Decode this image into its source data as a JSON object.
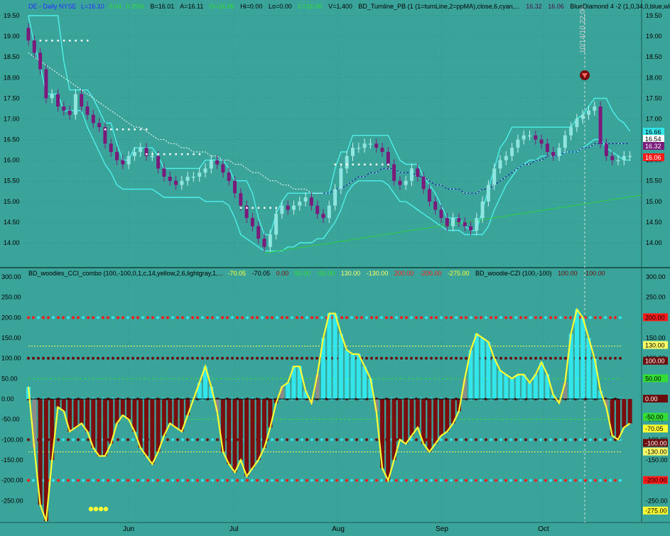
{
  "colors": {
    "background": "#3aa49a",
    "axis_text": "#000000",
    "candle_up": "#8fe6e0",
    "candle_down": "#7a1a7a",
    "envelope": "#4ff0ec",
    "ma_dashed": "#ffffff",
    "ma_blue": "#0d2fa0",
    "trend_line": "#2ecc40",
    "cci_line": "#ffff33",
    "cci_pos": "#33e6ec",
    "cci_neg": "#7a0d0d",
    "cci_neutral": "#8c8c8c",
    "dot_red": "#ff1a1a",
    "dot_cyan": "#33e6ec",
    "dot_dark": "#6b0d0d"
  },
  "price_header": {
    "symbol": "DE - Daily NYSE",
    "last": "L=16.10",
    "change": "0.04",
    "change_pct": "0.25%",
    "bid": "B=16.01",
    "ask": "A=16.11",
    "open": "O=16.06",
    "high": "Hi=0.00",
    "low": "Lo=0.00",
    "close": "C=16.06",
    "volume": "V=1,400",
    "study1": "BD_Turnline_PB (1 (1=turnLine,2=ppMA),close,6,cyan,...",
    "study1_v1": "16.32",
    "study1_v2": "16.06",
    "study2": "BlueDiamond 4 -2 (1,0,34,0,blue,wl..."
  },
  "cci_header": {
    "study": "BD_woodies_CCI_combo (100,-100,0,1,c,14,yellow,2,6,lightgray,1,...",
    "v1": "-70.05",
    "v2": "-70.05",
    "v3": "0.00",
    "v4": "50.00",
    "v5": "-50.00",
    "v6": "130.00",
    "v7": "-130.00",
    "v8": "200.00",
    "v9": "-200.00",
    "v10": "-275.00",
    "study2": "BD_woodie-CZI (100,-100)",
    "v11": "100.00",
    "v12": "-100.00"
  },
  "cursor_label": "10/14/10 22:00",
  "x_axis": {
    "labels": [
      "Jun",
      "Jul",
      "Aug",
      "Sep",
      "Oct"
    ]
  },
  "price_badges": [
    {
      "text": "16.66",
      "fg": "#000000",
      "bg": "#33e6ec"
    },
    {
      "text": "16.54",
      "fg": "#000000",
      "bg": "#ffffff"
    },
    {
      "text": "16.32",
      "fg": "#ffffff",
      "bg": "#7a1a7a"
    },
    {
      "text": "16.06",
      "fg": "#ffffff",
      "bg": "#ff1a1a"
    }
  ],
  "cci_badges": [
    {
      "text": "200.00",
      "fg": "#000000",
      "bg": "#ff1a1a"
    },
    {
      "text": "130.00",
      "fg": "#000000",
      "bg": "#ffff66"
    },
    {
      "text": "100.00",
      "fg": "#ffffff",
      "bg": "#6b0d0d"
    },
    {
      "text": "50.00",
      "fg": "#000000",
      "bg": "#33dd33"
    },
    {
      "text": "0.00",
      "fg": "#ffffff",
      "bg": "#6b0d0d"
    },
    {
      "text": "-50.00",
      "fg": "#000000",
      "bg": "#33dd33"
    },
    {
      "text": "-70.05",
      "fg": "#000000",
      "bg": "#ffff33"
    },
    {
      "text": "-100.00",
      "fg": "#ffffff",
      "bg": "#6b0d0d"
    },
    {
      "text": "-130.00",
      "fg": "#000000",
      "bg": "#ffff66"
    },
    {
      "text": "-200.00",
      "fg": "#000000",
      "bg": "#ff1a1a"
    },
    {
      "text": "-275.00",
      "fg": "#000000",
      "bg": "#ffff33"
    }
  ],
  "chart_data": [
    {
      "type": "candlestick",
      "title": "DE - Daily NYSE",
      "x_labels": [
        "Jun",
        "Jul",
        "Aug",
        "Sep",
        "Oct"
      ],
      "y_ticks": [
        14.0,
        14.5,
        15.0,
        15.5,
        16.0,
        16.5,
        17.0,
        17.5,
        18.0,
        18.5,
        19.0,
        19.5
      ],
      "y_tick_labels": [
        "14.00",
        "14.50",
        "15.00",
        "15.50",
        "16.00",
        "16.50",
        "17.00",
        "17.50",
        "18.00",
        "18.50",
        "19.00",
        "19.50"
      ],
      "ylim": [
        13.6,
        19.8
      ],
      "close": [
        18.9,
        18.6,
        18.2,
        17.5,
        17.6,
        17.3,
        17.2,
        17.1,
        17.6,
        17.3,
        17.1,
        16.9,
        16.8,
        16.4,
        16.2,
        16.0,
        15.9,
        16.1,
        16.2,
        16.3,
        16.1,
        16.1,
        15.8,
        15.6,
        15.5,
        15.4,
        15.5,
        15.6,
        15.6,
        15.7,
        15.8,
        16.0,
        15.9,
        15.7,
        15.5,
        15.2,
        14.9,
        14.6,
        14.4,
        14.1,
        13.9,
        14.2,
        14.7,
        14.9,
        14.8,
        14.9,
        15.0,
        15.1,
        14.9,
        14.7,
        14.6,
        14.9,
        15.3,
        15.8,
        16.1,
        16.3,
        16.3,
        16.4,
        16.4,
        16.3,
        16.2,
        15.9,
        15.5,
        15.4,
        15.5,
        15.8,
        15.6,
        15.3,
        15.0,
        14.8,
        14.6,
        14.4,
        14.6,
        14.5,
        14.4,
        14.3,
        14.6,
        15.0,
        15.4,
        15.8,
        16.0,
        16.1,
        16.3,
        16.5,
        16.6,
        16.6,
        16.5,
        16.4,
        16.2,
        16.1,
        16.3,
        16.6,
        16.8,
        17.0,
        17.1,
        17.2,
        17.3,
        16.4,
        16.1,
        16.0,
        16.0,
        16.1,
        16.1
      ],
      "envelope_upper": [
        19.5,
        19.5,
        19.5,
        19.5,
        19.5,
        19.5,
        18.4,
        17.7,
        17.7,
        17.7,
        17.7,
        17.5,
        17.2,
        16.9,
        16.9,
        16.4,
        16.0,
        16.0,
        16.3,
        16.3,
        16.3,
        16.3,
        16.1,
        15.8,
        15.8,
        15.8,
        15.8,
        15.8,
        15.8,
        15.8,
        16.0,
        16.0,
        16.0,
        16.0,
        15.8,
        15.5,
        15.5,
        15.5,
        15.2,
        14.6,
        14.2,
        14.2,
        14.7,
        15.0,
        15.2,
        15.2,
        15.2,
        15.2,
        15.2,
        15.2,
        15.2,
        15.2,
        15.8,
        16.2,
        16.2,
        16.6,
        16.6,
        16.6,
        16.6,
        16.6,
        16.6,
        16.6,
        16.3,
        16.0,
        15.9,
        15.9,
        15.9,
        15.6,
        15.4,
        15.2,
        14.9,
        14.6,
        14.6,
        14.6,
        14.4,
        14.3,
        14.3,
        14.8,
        15.3,
        15.8,
        16.3,
        16.5,
        16.8,
        16.8,
        16.8,
        16.8,
        16.8,
        16.8,
        16.8,
        16.8,
        16.8,
        16.8,
        16.8,
        17.0,
        17.1,
        17.3,
        17.5,
        17.5,
        17.5,
        17.2,
        17.0,
        16.9,
        16.7
      ],
      "envelope_lower": [
        19.5,
        18.8,
        18.3,
        17.6,
        17.6,
        17.6,
        17.2,
        17.2,
        17.2,
        17.2,
        16.8,
        16.5,
        16.2,
        15.9,
        15.7,
        15.4,
        15.3,
        15.3,
        15.3,
        15.3,
        15.3,
        15.3,
        15.2,
        15.1,
        15.1,
        15.1,
        15.1,
        15.1,
        15.1,
        15.1,
        15.0,
        15.0,
        15.0,
        15.0,
        14.9,
        14.6,
        14.2,
        14.1,
        14.0,
        13.9,
        13.8,
        13.8,
        13.8,
        13.8,
        13.9,
        13.9,
        14.0,
        14.0,
        14.0,
        14.1,
        14.1,
        14.3,
        14.5,
        14.8,
        15.2,
        15.4,
        15.5,
        15.5,
        15.5,
        15.5,
        15.5,
        15.4,
        15.2,
        15.0,
        15.0,
        14.9,
        14.8,
        14.7,
        14.6,
        14.5,
        14.4,
        14.3,
        14.3,
        14.3,
        14.2,
        14.2,
        14.2,
        14.2,
        14.4,
        14.8,
        15.1,
        15.4,
        15.6,
        15.8,
        15.9,
        16.0,
        16.0,
        16.1,
        16.1,
        16.1,
        16.1,
        16.2,
        16.2,
        16.2,
        16.3,
        16.4,
        16.5,
        16.5,
        16.3,
        16.2,
        16.1,
        16.0,
        16.0
      ],
      "ma_white": [
        18.6,
        18.5,
        18.4,
        18.3,
        18.2,
        18.1,
        18.0,
        17.9,
        17.8,
        17.7,
        17.6,
        17.5,
        17.4,
        17.3,
        17.2,
        17.1,
        17.0,
        16.9,
        16.8,
        16.8,
        16.7,
        16.6,
        16.5,
        16.5,
        16.4,
        16.4,
        16.3,
        16.3,
        16.2,
        16.2,
        16.2,
        16.1,
        16.1,
        16.0,
        16.0,
        15.9,
        15.9,
        15.8,
        15.7,
        15.7,
        15.6,
        15.5,
        15.5,
        15.4,
        15.4,
        15.3,
        15.3,
        15.3,
        15.2,
        15.2,
        15.2,
        15.2,
        15.3,
        15.3,
        15.4,
        15.5,
        15.6,
        15.6,
        15.7,
        15.7,
        15.8,
        15.8,
        15.8,
        15.7,
        15.7,
        15.7,
        15.6,
        15.6,
        15.5,
        15.4,
        15.4,
        15.3,
        15.3,
        15.3,
        15.2,
        15.2,
        15.2,
        15.3,
        15.3,
        15.4,
        15.5,
        15.6,
        15.7,
        15.8,
        15.9,
        15.9,
        16.0,
        16.0,
        16.1,
        16.1,
        16.1,
        16.2,
        16.2,
        16.2,
        16.3,
        16.3,
        16.4,
        16.4,
        16.4,
        16.4,
        16.4,
        16.4,
        16.4
      ],
      "trend_line": {
        "from": [
          40,
          13.75
        ],
        "to": [
          103,
          15.1
        ]
      }
    },
    {
      "type": "bar",
      "title": "BD_woodies_CCI_combo",
      "y_ticks": [
        -250,
        -200,
        -150,
        -100,
        -50,
        0,
        50,
        100,
        150,
        200,
        250,
        300
      ],
      "y_tick_labels": [
        "-250.00",
        "-200.00",
        "-150.00",
        "-100.00",
        "-50.00",
        "0.00",
        "50.00",
        "100.00",
        "150.00",
        "200.00",
        "250.00",
        "300.00"
      ],
      "ylim": [
        -300,
        310
      ],
      "levels": [
        200,
        130,
        100,
        50,
        0,
        -50,
        -100,
        -130,
        -200
      ],
      "cci": [
        30,
        -120,
        -260,
        -300,
        -150,
        -20,
        -30,
        -80,
        -70,
        -60,
        -80,
        -120,
        -140,
        -140,
        -110,
        -60,
        -40,
        -50,
        -80,
        -120,
        -140,
        -160,
        -130,
        -90,
        -60,
        -70,
        -80,
        -40,
        0,
        40,
        80,
        30,
        -30,
        -130,
        -160,
        -180,
        -150,
        -190,
        -170,
        -150,
        -120,
        -70,
        -10,
        30,
        40,
        80,
        80,
        20,
        -10,
        60,
        150,
        210,
        210,
        160,
        120,
        110,
        110,
        80,
        50,
        -30,
        -170,
        -200,
        -150,
        -100,
        -110,
        -90,
        -70,
        -110,
        -130,
        -110,
        -90,
        -80,
        -60,
        -30,
        50,
        120,
        160,
        150,
        140,
        100,
        70,
        60,
        50,
        60,
        60,
        40,
        60,
        90,
        60,
        10,
        -10,
        40,
        160,
        220,
        200,
        150,
        100,
        20,
        -20,
        -90,
        -100,
        -70,
        -60
      ]
    }
  ]
}
